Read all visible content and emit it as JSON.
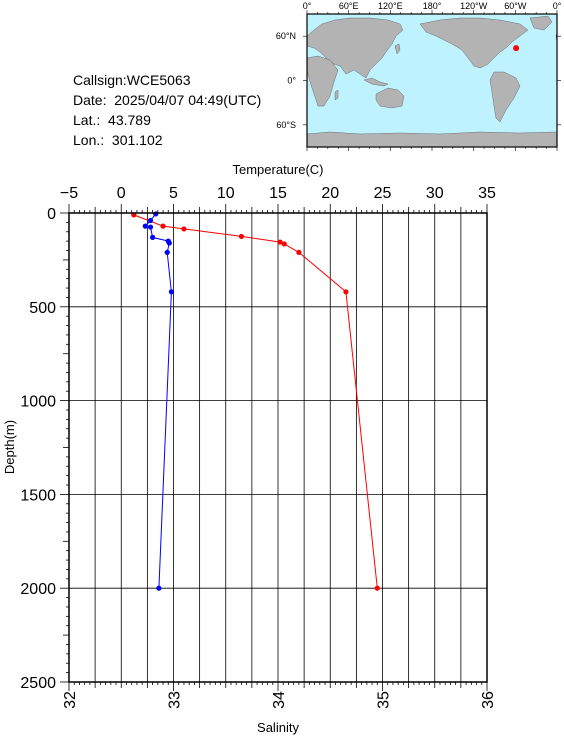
{
  "station": {
    "callsign_label": "Callsign:",
    "callsign": "WCE5063",
    "date_label": "Date:",
    "date": "2025/04/07 04:49(UTC)",
    "lat_label": "Lat.:",
    "lat": "43.789",
    "lon_label": "Lon.:",
    "lon": "301.102"
  },
  "map": {
    "lon_ticks": [
      "0°",
      "60°E",
      "120°E",
      "180°",
      "120°W",
      "60°W",
      "0°"
    ],
    "lat_ticks": [
      "60°N",
      "0°",
      "60°S"
    ],
    "marker_lon": 301.102,
    "marker_lat": 43.789,
    "colors": {
      "ocean": "#bff2ff",
      "land": "#b3b3b3",
      "marker": "#ff0000"
    }
  },
  "chart_data": {
    "type": "line",
    "top_axis": {
      "label": "Temperature(C)",
      "range": [
        -5,
        35
      ],
      "ticks": [
        -5,
        0,
        5,
        10,
        15,
        20,
        25,
        30,
        35
      ]
    },
    "bottom_axis": {
      "label": "Salinity",
      "range": [
        32,
        36
      ],
      "ticks": [
        32,
        33,
        34,
        35,
        36
      ]
    },
    "y_axis": {
      "label": "Depth(m)",
      "range": [
        0,
        2500
      ],
      "inverted": true,
      "ticks": [
        0,
        500,
        1000,
        1500,
        2000,
        2500
      ]
    },
    "grid": true,
    "series": [
      {
        "quantity": "temperature",
        "color": "#ff0000",
        "points": [
          {
            "value": 1.2,
            "depth": 10
          },
          {
            "value": 4.0,
            "depth": 70
          },
          {
            "value": 6.0,
            "depth": 85
          },
          {
            "value": 11.5,
            "depth": 125
          },
          {
            "value": 15.2,
            "depth": 155
          },
          {
            "value": 15.6,
            "depth": 165
          },
          {
            "value": 17.0,
            "depth": 210
          },
          {
            "value": 21.5,
            "depth": 420
          },
          {
            "value": 24.5,
            "depth": 2000
          }
        ]
      },
      {
        "quantity": "salinity",
        "color": "#0000ff",
        "points": [
          {
            "value": 32.83,
            "depth": 5
          },
          {
            "value": 32.78,
            "depth": 40
          },
          {
            "value": 32.73,
            "depth": 70
          },
          {
            "value": 32.78,
            "depth": 75
          },
          {
            "value": 32.8,
            "depth": 130
          },
          {
            "value": 32.95,
            "depth": 150
          },
          {
            "value": 32.96,
            "depth": 160
          },
          {
            "value": 32.94,
            "depth": 210
          },
          {
            "value": 32.98,
            "depth": 420
          },
          {
            "value": 32.86,
            "depth": 2000
          }
        ]
      }
    ]
  }
}
